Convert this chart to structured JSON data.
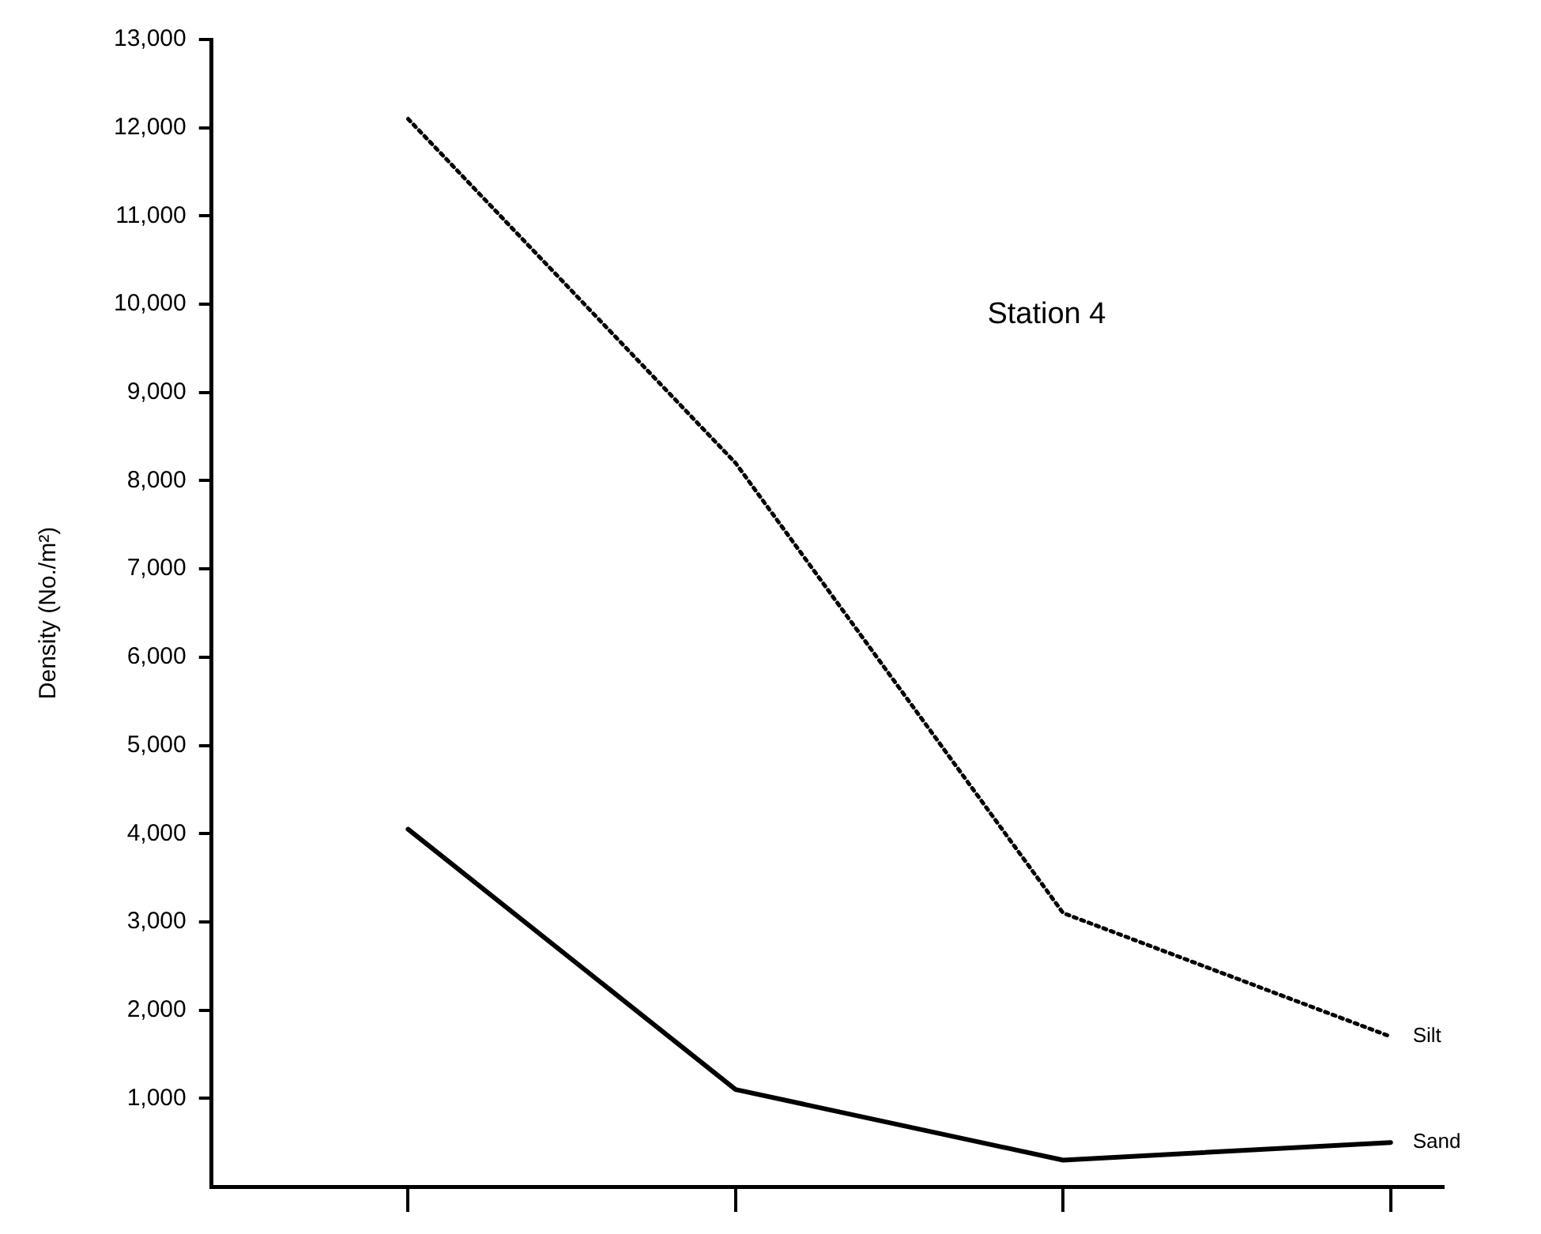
{
  "chart_data": {
    "type": "line",
    "ylabel": "Density (No./m²)",
    "annotations": [
      "Station 4"
    ],
    "categories": [
      null,
      null,
      null,
      null
    ],
    "series": [
      {
        "name": "Silt",
        "color": "#000000",
        "line_style": "dotted",
        "values": [
          12100,
          8200,
          3100,
          1700
        ]
      },
      {
        "name": "Sand",
        "color": "#000000",
        "line_style": "solid",
        "values": [
          4050,
          1100,
          300,
          500
        ]
      }
    ],
    "ylim": [
      0,
      13000
    ],
    "yticks": [
      {
        "value": 1000,
        "label": "1,000"
      },
      {
        "value": 2000,
        "label": "2,000"
      },
      {
        "value": 3000,
        "label": "3,000"
      },
      {
        "value": 4000,
        "label": "4,000"
      },
      {
        "value": 5000,
        "label": "5,000"
      },
      {
        "value": 6000,
        "label": "6,000"
      },
      {
        "value": 7000,
        "label": "7,000"
      },
      {
        "value": 8000,
        "label": "8,000"
      },
      {
        "value": 9000,
        "label": "9,000"
      },
      {
        "value": 10000,
        "label": "10,000"
      },
      {
        "value": 11000,
        "label": "11,000"
      },
      {
        "value": 12000,
        "label": "12,000"
      },
      {
        "value": 13000,
        "label": "13,000"
      }
    ],
    "grid": false,
    "legend": false,
    "marker": "none",
    "tick_labels": "y"
  }
}
